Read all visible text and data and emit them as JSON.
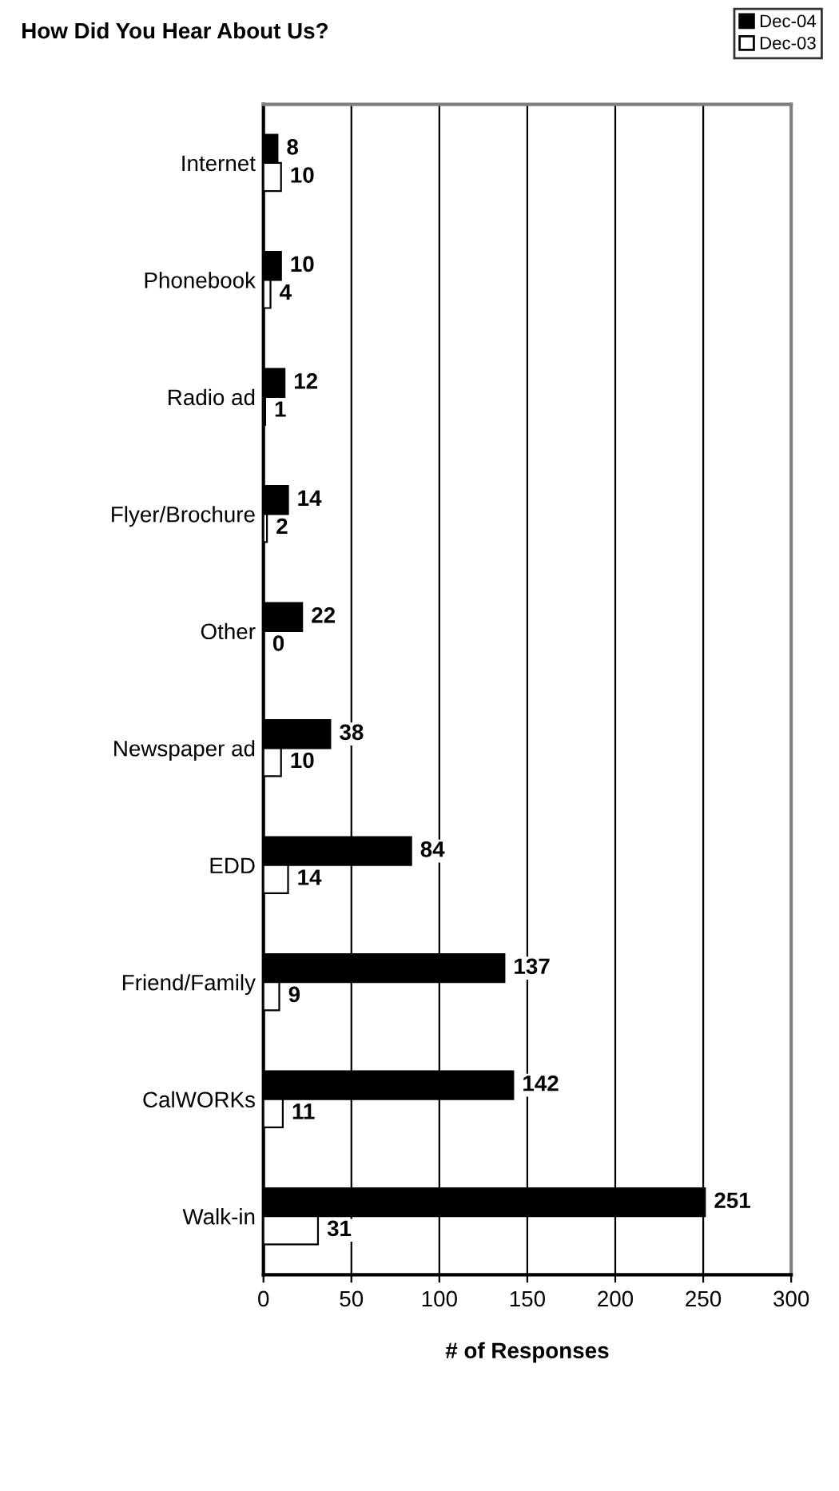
{
  "chart_data": {
    "type": "bar",
    "orientation": "horizontal",
    "title": "How Did You Hear About Us?",
    "xlabel": "# of Responses",
    "categories": [
      "Internet",
      "Phonebook",
      "Radio ad",
      "Flyer/Brochure",
      "Other",
      "Newspaper ad",
      "EDD",
      "Friend/Family",
      "CalWORKs",
      "Walk-in"
    ],
    "series": [
      {
        "name": "Dec-04",
        "color": "#000000",
        "values": [
          8,
          10,
          12,
          14,
          22,
          38,
          84,
          137,
          142,
          251
        ]
      },
      {
        "name": "Dec-03",
        "color": "#ffffff",
        "values": [
          10,
          4,
          1,
          2,
          0,
          10,
          14,
          9,
          11,
          31
        ]
      }
    ],
    "xlim": [
      0,
      300
    ],
    "xticks": [
      0,
      50,
      100,
      150,
      200,
      250,
      300
    ],
    "grid": "x",
    "legend": "top right",
    "data_labels": true
  }
}
